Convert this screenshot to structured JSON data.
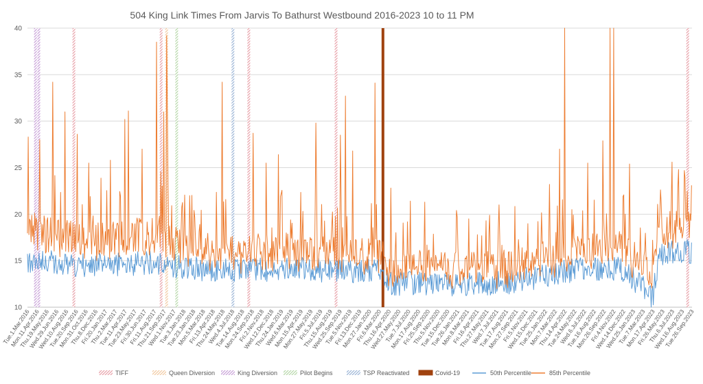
{
  "chart_data": {
    "type": "line",
    "title": "504 King Link Times From Jarvis To Bathurst Westbound 2016-2023 10 to 11 PM",
    "xlabel": "",
    "ylabel": "",
    "ylim": [
      10,
      40
    ],
    "y_ticks": [
      10,
      15,
      20,
      25,
      30,
      35,
      40
    ],
    "grid": true,
    "legend_position": "bottom",
    "x_start_date": "2016-03-01",
    "x_end_date": "2023-09-26",
    "x_tick_labels": [
      "Tue.1.Mar.2016",
      "Mon.11.Apr.2016",
      "Thu.19.May.2016",
      "Wed.29.Jun.2016",
      "Wed.10.Aug.2016",
      "Tue.20.Sep.2016",
      "Mon.31.Oct.2016",
      "Thu.8.Dec.2016",
      "Fri.20.Jan.2017",
      "Thu.2.Mar.2017",
      "Tue.11.Apr.2017",
      "Tue.23.May.2017",
      "Fri.30.Jun.2017",
      "Fri.11.Aug.2017",
      "Thu.21.Sep.2017",
      "Wed.1.Nov.2017",
      "Tue.3.Jan.2018",
      "Tue.23.Jan.2018",
      "Mon.5.Mar.2018",
      "Fri.13.Apr.2018",
      "Thu.24.May.2018",
      "Wed.4.Jul.2018",
      "Tue.14.Aug.2018",
      "Mon.24.Sep.2018",
      "Fri.2.Nov.2018",
      "Wed.12.Dec.2018",
      "Thu.24.Jan.2019",
      "Wed.6.Mar.2019",
      "Mon.15.Apr.2019",
      "Mon.27.May.2019",
      "Fri.5.Jul.2019",
      "Thu.15.Aug.2019",
      "Wed.25.Sep.2019",
      "Tue.5.Nov.2019",
      "Fri.13.Dec.2019",
      "Mon.27.Jan.2020",
      "Fri.6.Mar.2020",
      "Thu.16.Apr.2020",
      "Wed.27.May.2020",
      "Tue.7.Jul.2020",
      "Mon.17.Aug.2020",
      "Fri.25.Sep.2020",
      "Thu.5.Nov.2020",
      "Tue.15.Dec.2020",
      "Tue.26.Jan.2021",
      "Mon.8.Mar.2021",
      "Fri.16.Apr.2021",
      "Thu.27.May.2021",
      "Wed.7.Jul.2021",
      "Tue.17.Aug.2021",
      "Mon.27.Sep.2021",
      "Fri.5.Nov.2021",
      "Wed.15.Dec.2021",
      "Tue.25.Jan.2022",
      "Mon.7.Mar.2022",
      "Thu.14.Apr.2022",
      "Tue.24.May.2022",
      "Wed.6.Jul.2022",
      "Tue.16.Aug.2022",
      "Mon.26.Sep.2022",
      "Fri.4.Nov.2022",
      "Wed.14.Dec.2022",
      "Wed.25.Jan.2023",
      "Tue.7.Mar.2023",
      "Mon.17.Apr.2023",
      "Fri.26.May.2023",
      "Thu.6.Jul.2023",
      "Wed.16.Aug.2023",
      "Tue.26.Sep.2023"
    ],
    "events": [
      {
        "legend": "TIFF",
        "color": "#e8a0a8",
        "pattern": "hatch",
        "dates": [
          "2016-09-10",
          "2017-09-08",
          "2018-09-08",
          "2019-09-06",
          "2023-09-08"
        ]
      },
      {
        "legend": "Queen Diversion",
        "color": "#f2c9a0",
        "pattern": "hatch",
        "dates": [
          "2017-10-01"
        ]
      },
      {
        "legend": "King Diversion",
        "color": "#c8a0d8",
        "pattern": "hatch",
        "dates": [
          "2016-04-03",
          "2016-04-17"
        ]
      },
      {
        "legend": "Pilot Begins",
        "color": "#b6d7a8",
        "pattern": "hatch",
        "dates": [
          "2017-11-12"
        ]
      },
      {
        "legend": "TSP Reactivated",
        "color": "#9ab4d6",
        "pattern": "hatch",
        "dates": [
          "2018-07-04"
        ]
      },
      {
        "legend": "Covid-19",
        "color": "#a0420f",
        "pattern": "solid",
        "dates": [
          "2020-03-19"
        ]
      }
    ],
    "series": [
      {
        "name": "50th Percentile",
        "color": "#5b9bd5",
        "anchors": [
          [
            "2016-03-01",
            15.0
          ],
          [
            "2016-06-01",
            14.8
          ],
          [
            "2016-09-01",
            14.6
          ],
          [
            "2016-12-01",
            14.5
          ],
          [
            "2017-03-01",
            14.6
          ],
          [
            "2017-06-01",
            14.7
          ],
          [
            "2017-09-01",
            14.8
          ],
          [
            "2017-11-15",
            14.4
          ],
          [
            "2018-03-01",
            14.0
          ],
          [
            "2018-07-01",
            13.9
          ],
          [
            "2018-11-01",
            14.0
          ],
          [
            "2019-03-01",
            14.2
          ],
          [
            "2019-07-01",
            14.0
          ],
          [
            "2019-11-01",
            13.8
          ],
          [
            "2020-03-15",
            13.9
          ],
          [
            "2020-04-01",
            12.5
          ],
          [
            "2020-10-01",
            12.6
          ],
          [
            "2021-03-01",
            12.4
          ],
          [
            "2021-09-01",
            12.7
          ],
          [
            "2022-01-01",
            13.3
          ],
          [
            "2022-06-01",
            14.0
          ],
          [
            "2022-12-01",
            14.2
          ],
          [
            "2023-03-15",
            12.0
          ],
          [
            "2023-04-15",
            11.0
          ],
          [
            "2023-05-15",
            15.8
          ],
          [
            "2023-09-26",
            16.0
          ]
        ]
      },
      {
        "name": "85th Percentile",
        "color": "#ed7d31",
        "anchors": [
          [
            "2016-03-01",
            18.2
          ],
          [
            "2016-06-01",
            17.6
          ],
          [
            "2016-09-01",
            17.2
          ],
          [
            "2016-12-01",
            16.9
          ],
          [
            "2017-03-01",
            17.3
          ],
          [
            "2017-06-01",
            17.6
          ],
          [
            "2017-09-01",
            17.8
          ],
          [
            "2017-11-15",
            16.6
          ],
          [
            "2018-03-01",
            15.9
          ],
          [
            "2018-07-01",
            15.6
          ],
          [
            "2018-11-01",
            15.9
          ],
          [
            "2019-03-01",
            16.0
          ],
          [
            "2019-07-01",
            15.6
          ],
          [
            "2019-11-01",
            15.3
          ],
          [
            "2020-03-15",
            15.4
          ],
          [
            "2020-04-01",
            13.8
          ],
          [
            "2020-10-01",
            14.1
          ],
          [
            "2021-03-01",
            13.8
          ],
          [
            "2021-09-01",
            14.1
          ],
          [
            "2022-01-01",
            14.9
          ],
          [
            "2022-06-01",
            15.8
          ],
          [
            "2022-12-01",
            16.2
          ],
          [
            "2023-03-15",
            14.0
          ],
          [
            "2023-04-15",
            12.5
          ],
          [
            "2023-05-15",
            18.2
          ],
          [
            "2023-09-26",
            18.4
          ]
        ],
        "spikes": [
          [
            "2016-03-05",
            28.3
          ],
          [
            "2016-04-20",
            28.0
          ],
          [
            "2016-06-15",
            34.2
          ],
          [
            "2016-08-05",
            31.0
          ],
          [
            "2016-09-25",
            28.6
          ],
          [
            "2016-11-10",
            25.5
          ],
          [
            "2017-02-10",
            25.8
          ],
          [
            "2017-04-10",
            30.2
          ],
          [
            "2017-04-25",
            31.1
          ],
          [
            "2017-06-20",
            27.0
          ],
          [
            "2017-08-20",
            38.5
          ],
          [
            "2017-09-20",
            31.0
          ],
          [
            "2017-10-01",
            39.2
          ],
          [
            "2017-10-05",
            31.0
          ],
          [
            "2018-01-05",
            22.0
          ],
          [
            "2018-05-20",
            34.2
          ],
          [
            "2018-09-25",
            28.7
          ],
          [
            "2018-11-20",
            25.5
          ],
          [
            "2019-01-10",
            26.4
          ],
          [
            "2019-06-15",
            29.8
          ],
          [
            "2019-09-25",
            28.5
          ],
          [
            "2019-10-15",
            32.7
          ],
          [
            "2019-11-15",
            26.8
          ],
          [
            "2020-02-15",
            34.1
          ],
          [
            "2020-04-20",
            22.8
          ],
          [
            "2020-07-10",
            21.4
          ],
          [
            "2020-09-10",
            21.3
          ],
          [
            "2021-01-20",
            20.4
          ],
          [
            "2021-03-10",
            19.5
          ],
          [
            "2021-07-15",
            21.0
          ],
          [
            "2022-02-10",
            23.2
          ],
          [
            "2022-03-25",
            27.0
          ],
          [
            "2022-04-14",
            40.0
          ],
          [
            "2022-07-20",
            25.5
          ],
          [
            "2022-09-20",
            27.9
          ],
          [
            "2022-10-20",
            40.0
          ],
          [
            "2022-11-05",
            40.0
          ],
          [
            "2023-01-10",
            25.4
          ],
          [
            "2023-05-20",
            21.1
          ],
          [
            "2023-07-05",
            25.6
          ],
          [
            "2023-08-25",
            24.7
          ],
          [
            "2023-09-25",
            23.1
          ]
        ]
      }
    ]
  }
}
